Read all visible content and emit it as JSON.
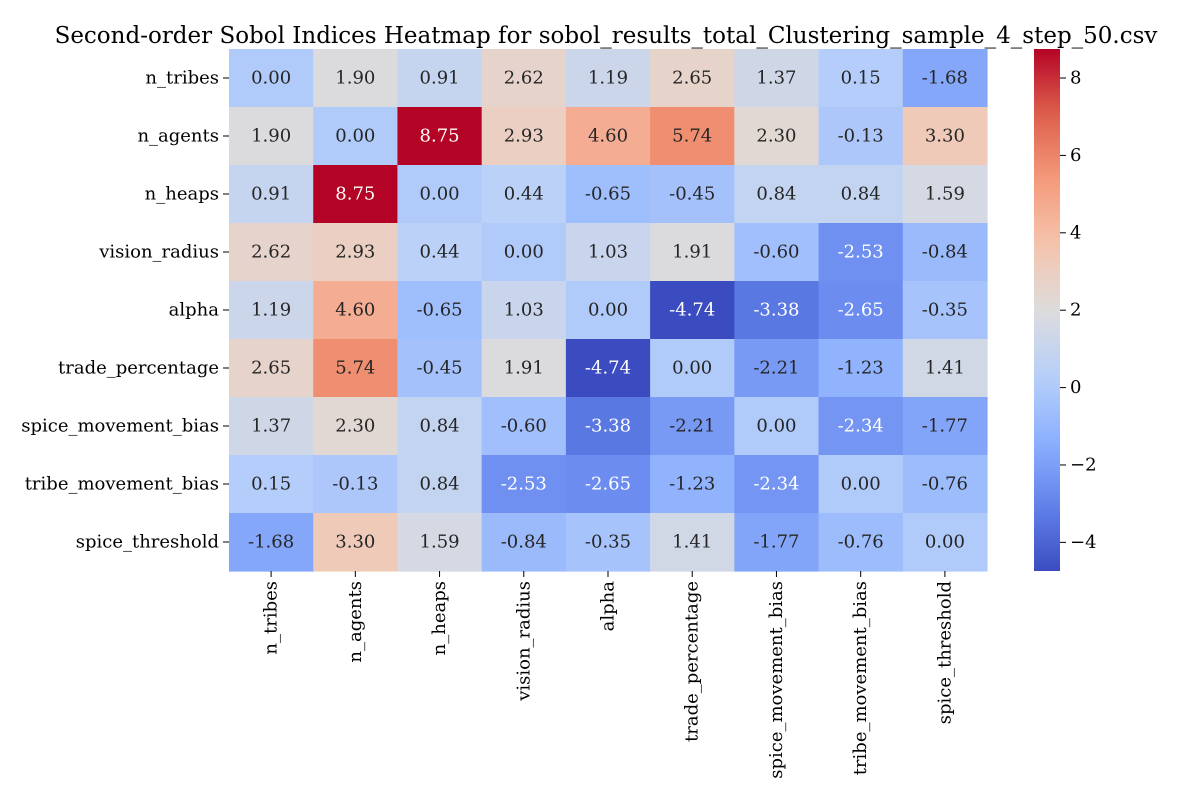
{
  "chart_data": {
    "type": "heatmap",
    "title": "Second-order Sobol Indices Heatmap for sobol_results_total_Clustering_sample_4_step_50.csv",
    "xlabel": "",
    "ylabel": "",
    "rows": [
      "n_tribes",
      "n_agents",
      "n_heaps",
      "vision_radius",
      "alpha",
      "trade_percentage",
      "spice_movement_bias",
      "tribe_movement_bias",
      "spice_threshold"
    ],
    "columns": [
      "n_tribes",
      "n_agents",
      "n_heaps",
      "vision_radius",
      "alpha",
      "trade_percentage",
      "spice_movement_bias",
      "tribe_movement_bias",
      "spice_threshold"
    ],
    "values": [
      [
        0.0,
        1.9,
        0.91,
        2.62,
        1.19,
        2.65,
        1.37,
        0.15,
        -1.68
      ],
      [
        1.9,
        0.0,
        8.75,
        2.93,
        4.6,
        5.74,
        2.3,
        -0.13,
        3.3
      ],
      [
        0.91,
        8.75,
        0.0,
        0.44,
        -0.65,
        -0.45,
        0.84,
        0.84,
        1.59
      ],
      [
        2.62,
        2.93,
        0.44,
        0.0,
        1.03,
        1.91,
        -0.6,
        -2.53,
        -0.84
      ],
      [
        1.19,
        4.6,
        -0.65,
        1.03,
        0.0,
        -4.74,
        -3.38,
        -2.65,
        -0.35
      ],
      [
        2.65,
        5.74,
        -0.45,
        1.91,
        -4.74,
        0.0,
        -2.21,
        -1.23,
        1.41
      ],
      [
        1.37,
        2.3,
        0.84,
        -0.6,
        -3.38,
        -2.21,
        0.0,
        -2.34,
        -1.77
      ],
      [
        0.15,
        -0.13,
        0.84,
        -2.53,
        -2.65,
        -1.23,
        -2.34,
        0.0,
        -0.76
      ],
      [
        -1.68,
        3.3,
        1.59,
        -0.84,
        -0.35,
        1.41,
        -1.77,
        -0.76,
        0.0
      ]
    ],
    "labels": [
      [
        "0.00",
        "1.90",
        "0.91",
        "2.62",
        "1.19",
        "2.65",
        "1.37",
        "0.15",
        "-1.68"
      ],
      [
        "1.90",
        "0.00",
        "8.75",
        "2.93",
        "4.60",
        "5.74",
        "2.30",
        "-0.13",
        "3.30"
      ],
      [
        "0.91",
        "8.75",
        "0.00",
        "0.44",
        "-0.65",
        "-0.45",
        "0.84",
        "0.84",
        "1.59"
      ],
      [
        "2.62",
        "2.93",
        "0.44",
        "0.00",
        "1.03",
        "1.91",
        "-0.60",
        "-2.53",
        "-0.84"
      ],
      [
        "1.19",
        "4.60",
        "-0.65",
        "1.03",
        "0.00",
        "-4.74",
        "-3.38",
        "-2.65",
        "-0.35"
      ],
      [
        "2.65",
        "5.74",
        "-0.45",
        "1.91",
        "-4.74",
        "0.00",
        "-2.21",
        "-1.23",
        "1.41"
      ],
      [
        "1.37",
        "2.30",
        "0.84",
        "-0.60",
        "-3.38",
        "-2.21",
        "0.00",
        "-2.34",
        "-1.77"
      ],
      [
        "0.15",
        "-0.13",
        "0.84",
        "-2.53",
        "-2.65",
        "-1.23",
        "-2.34",
        "0.00",
        "-0.76"
      ],
      [
        "-1.68",
        "3.30",
        "1.59",
        "-0.84",
        "-0.35",
        "1.41",
        "-1.77",
        "-0.76",
        "0.00"
      ]
    ],
    "colormap": "coolwarm",
    "vmin": -4.74,
    "vmax": 8.75,
    "colorbar_ticks": [
      8,
      6,
      4,
      2,
      0,
      -2,
      -4
    ],
    "colorbar_tick_labels": [
      "8",
      "6",
      "4",
      "2",
      "0",
      "−2",
      "−4"
    ],
    "colors": {
      "low": "#3b4cc0",
      "mid": "#dddcdc",
      "high": "#b40426"
    }
  }
}
